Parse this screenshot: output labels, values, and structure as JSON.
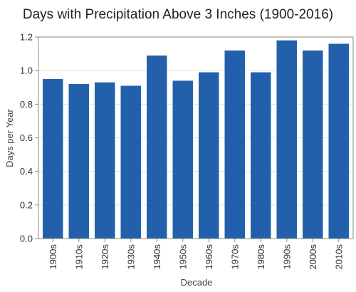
{
  "chart_data": {
    "type": "bar",
    "title": "Days with Precipitation Above 3 Inches (1900-2016)",
    "xlabel": "Decade",
    "ylabel": "Days per Year",
    "categories": [
      "1900s",
      "1910s",
      "1920s",
      "1930s",
      "1940s",
      "1950s",
      "1960s",
      "1970s",
      "1980s",
      "1990s",
      "2000s",
      "2010s"
    ],
    "values": [
      0.95,
      0.92,
      0.93,
      0.91,
      1.09,
      0.94,
      0.99,
      1.12,
      0.99,
      1.18,
      1.12,
      1.16
    ],
    "ylim": [
      0,
      1.2
    ],
    "yticks": [
      "0.0",
      "0.2",
      "0.4",
      "0.6",
      "0.8",
      "1.0",
      "1.2"
    ],
    "grid": true,
    "bar_color": "#2260ab"
  }
}
